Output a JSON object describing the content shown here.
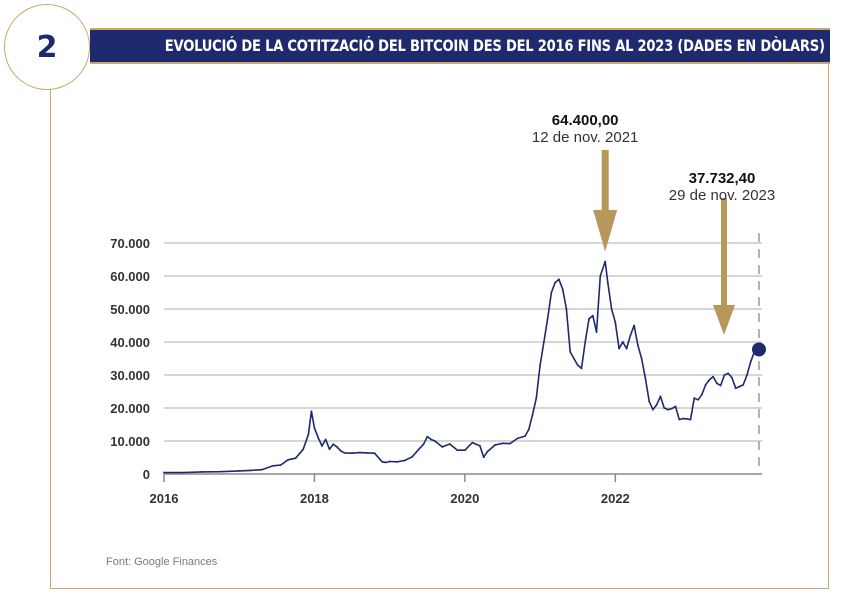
{
  "figure_number": "2",
  "title": "EVOLUCIÓ DE LA COTITZACIÓ DEL BITCOIN DES DEL 2016 FINS AL 2023 (DADES EN DÒLARS)",
  "source": "Font: Google Finances",
  "colors": {
    "navy": "#1f2a6e",
    "gold": "#b8975a",
    "grid": "#c8c8c8",
    "line": "#1f2a6e"
  },
  "chart_data": {
    "type": "line",
    "title": "EVOLUCIÓ DE LA COTITZACIÓ DEL BITCOIN DES DEL 2016 FINS AL 2023 (DADES EN DÒLARS)",
    "xlabel": "",
    "ylabel": "",
    "xlim": [
      2016,
      2023.95
    ],
    "ylim": [
      0,
      70000
    ],
    "x_ticks": [
      {
        "value": 2016,
        "label": "2016"
      },
      {
        "value": 2018,
        "label": "2018"
      },
      {
        "value": 2020,
        "label": "2020"
      },
      {
        "value": 2022,
        "label": "2022"
      }
    ],
    "y_ticks": [
      {
        "value": 0,
        "label": "0"
      },
      {
        "value": 10000,
        "label": "10.000"
      },
      {
        "value": 20000,
        "label": "20.000"
      },
      {
        "value": 30000,
        "label": "30.000"
      },
      {
        "value": 40000,
        "label": "40.000"
      },
      {
        "value": 50000,
        "label": "50.000"
      },
      {
        "value": 60000,
        "label": "60.000"
      },
      {
        "value": 70000,
        "label": "70.000"
      }
    ],
    "grid": true,
    "series": [
      {
        "x": [
          2016.0,
          2016.25,
          2016.5,
          2016.75,
          2017.0,
          2017.15,
          2017.3,
          2017.45,
          2017.55,
          2017.65,
          2017.75,
          2017.85,
          2017.92,
          2017.96,
          2018.0,
          2018.05,
          2018.1,
          2018.15,
          2018.2,
          2018.25,
          2018.3,
          2018.35,
          2018.4,
          2018.5,
          2018.6,
          2018.7,
          2018.8,
          2018.9,
          2018.95,
          2019.0,
          2019.1,
          2019.2,
          2019.3,
          2019.4,
          2019.45,
          2019.5,
          2019.55,
          2019.6,
          2019.7,
          2019.8,
          2019.9,
          2020.0,
          2020.1,
          2020.2,
          2020.25,
          2020.3,
          2020.4,
          2020.5,
          2020.6,
          2020.7,
          2020.8,
          2020.85,
          2020.9,
          2020.95,
          2021.0,
          2021.05,
          2021.1,
          2021.15,
          2021.2,
          2021.25,
          2021.3,
          2021.35,
          2021.4,
          2021.45,
          2021.5,
          2021.55,
          2021.6,
          2021.65,
          2021.7,
          2021.75,
          2021.8,
          2021.865,
          2021.9,
          2021.95,
          2022.0,
          2022.05,
          2022.1,
          2022.15,
          2022.2,
          2022.25,
          2022.3,
          2022.35,
          2022.4,
          2022.45,
          2022.5,
          2022.55,
          2022.6,
          2022.65,
          2022.7,
          2022.75,
          2022.8,
          2022.85,
          2022.9,
          2022.95,
          2023.0,
          2023.05,
          2023.1,
          2023.15,
          2023.2,
          2023.25,
          2023.3,
          2023.35,
          2023.4,
          2023.45,
          2023.5,
          2023.55,
          2023.6,
          2023.65,
          2023.7,
          2023.75,
          2023.8,
          2023.86
        ],
        "y": [
          430,
          420,
          650,
          700,
          950,
          1100,
          1300,
          2500,
          2700,
          4300,
          4800,
          7500,
          12000,
          19000,
          14000,
          11000,
          8500,
          10500,
          7500,
          9000,
          8200,
          7000,
          6400,
          6300,
          6500,
          6400,
          6300,
          3700,
          3500,
          3800,
          3700,
          4100,
          5200,
          7800,
          9000,
          11300,
          10500,
          10000,
          8200,
          9100,
          7200,
          7200,
          9500,
          8500,
          5100,
          6800,
          8800,
          9300,
          9200,
          10800,
          11500,
          13500,
          18000,
          23000,
          33000,
          40000,
          47000,
          55000,
          58000,
          59000,
          56000,
          50000,
          37000,
          35000,
          33000,
          32000,
          40000,
          47000,
          48000,
          43000,
          60000,
          64400,
          58000,
          50000,
          46000,
          38000,
          40000,
          38000,
          42000,
          45000,
          39000,
          35000,
          29000,
          22000,
          19500,
          21000,
          23500,
          20000,
          19500,
          19800,
          20500,
          16500,
          16800,
          16700,
          16500,
          23000,
          22500,
          24000,
          27000,
          28500,
          29500,
          27500,
          26800,
          30000,
          30500,
          29200,
          26000,
          26500,
          27000,
          30000,
          34000,
          37732.4
        ]
      }
    ],
    "annotations": [
      {
        "x": 2021.865,
        "y": 64400,
        "value_label": "64.400,00",
        "date_label": "12 de nov. 2021"
      },
      {
        "x": 2023.91,
        "y": 37732.4,
        "value_label": "37.732,40",
        "date_label": "29 de nov. 2023"
      }
    ]
  }
}
